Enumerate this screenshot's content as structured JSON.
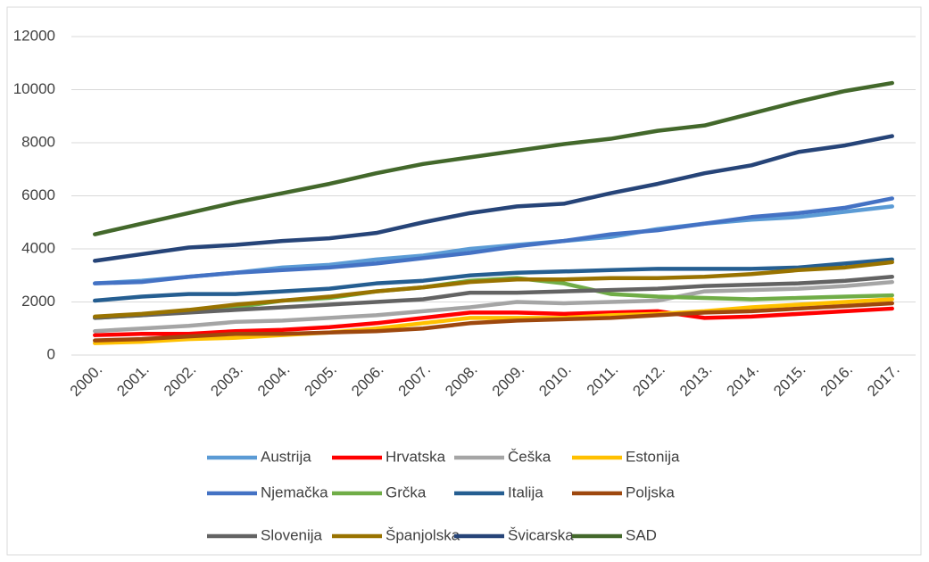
{
  "chart_data": {
    "type": "line",
    "categories": [
      "2000.",
      "2001.",
      "2002.",
      "2003.",
      "2004.",
      "2005.",
      "2006.",
      "2007.",
      "2008.",
      "2009.",
      "2010.",
      "2011.",
      "2012.",
      "2013.",
      "2014.",
      "2015.",
      "2016.",
      "2017."
    ],
    "series": [
      {
        "name": "Austrija",
        "color": "#5b9bd5",
        "values": [
          2700,
          2800,
          2950,
          3100,
          3300,
          3400,
          3600,
          3750,
          4000,
          4150,
          4300,
          4450,
          4750,
          4950,
          5100,
          5200,
          5400,
          5600
        ]
      },
      {
        "name": "Hrvatska",
        "color": "#ff0000",
        "values": [
          750,
          800,
          800,
          900,
          950,
          1050,
          1200,
          1400,
          1600,
          1600,
          1550,
          1600,
          1650,
          1400,
          1450,
          1550,
          1650,
          1750
        ]
      },
      {
        "name": "Češka",
        "color": "#a5a5a5",
        "values": [
          900,
          1000,
          1100,
          1250,
          1300,
          1400,
          1500,
          1650,
          1800,
          2000,
          1950,
          2000,
          2050,
          2400,
          2450,
          2500,
          2600,
          2750
        ]
      },
      {
        "name": "Estonija",
        "color": "#ffc000",
        "values": [
          450,
          500,
          600,
          650,
          750,
          850,
          1000,
          1200,
          1400,
          1400,
          1400,
          1500,
          1550,
          1650,
          1800,
          1900,
          2000,
          2100
        ]
      },
      {
        "name": "Njemačka",
        "color": "#4472c4",
        "values": [
          2700,
          2750,
          2950,
          3100,
          3200,
          3300,
          3450,
          3650,
          3850,
          4100,
          4300,
          4550,
          4700,
          4950,
          5200,
          5350,
          5550,
          5900
        ]
      },
      {
        "name": "Grčka",
        "color": "#70ad47",
        "values": [
          1400,
          1500,
          1650,
          1800,
          2050,
          2150,
          2400,
          2550,
          2800,
          2900,
          2700,
          2300,
          2200,
          2150,
          2100,
          2150,
          2200,
          2250
        ]
      },
      {
        "name": "Italija",
        "color": "#255e91",
        "values": [
          2050,
          2200,
          2300,
          2300,
          2400,
          2500,
          2700,
          2800,
          3000,
          3100,
          3150,
          3200,
          3250,
          3250,
          3250,
          3300,
          3450,
          3600
        ]
      },
      {
        "name": "Poljska",
        "color": "#9e480e",
        "values": [
          550,
          600,
          700,
          800,
          800,
          850,
          900,
          1000,
          1200,
          1300,
          1350,
          1400,
          1500,
          1600,
          1650,
          1750,
          1850,
          1950
        ]
      },
      {
        "name": "Slovenija",
        "color": "#636363",
        "values": [
          1400,
          1500,
          1600,
          1700,
          1800,
          1900,
          2000,
          2100,
          2350,
          2350,
          2400,
          2450,
          2500,
          2600,
          2650,
          2700,
          2800,
          2950
        ]
      },
      {
        "name": "Španjolska",
        "color": "#997300",
        "values": [
          1450,
          1550,
          1700,
          1900,
          2050,
          2200,
          2400,
          2550,
          2750,
          2850,
          2850,
          2900,
          2900,
          2950,
          3050,
          3200,
          3300,
          3500
        ]
      },
      {
        "name": "Švicarska",
        "color": "#264478",
        "values": [
          3550,
          3800,
          4050,
          4150,
          4300,
          4400,
          4600,
          5000,
          5350,
          5600,
          5700,
          6100,
          6450,
          6850,
          7150,
          7650,
          7900,
          8250
        ]
      },
      {
        "name": "SAD",
        "color": "#43682b",
        "values": [
          4550,
          4950,
          5350,
          5750,
          6100,
          6450,
          6850,
          7200,
          7450,
          7700,
          7950,
          8150,
          8450,
          8650,
          9100,
          9550,
          9950,
          10250
        ]
      }
    ],
    "ylim": [
      0,
      12000
    ],
    "yticks": [
      0,
      2000,
      4000,
      6000,
      8000,
      10000,
      12000
    ],
    "grid": true,
    "legend": "bottom"
  }
}
